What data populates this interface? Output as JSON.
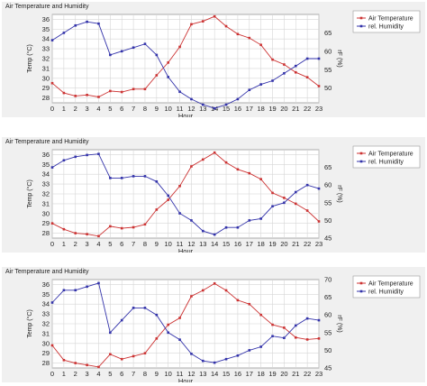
{
  "chart_data": [
    {
      "type": "line",
      "title": "Air Temperature and Humidity",
      "xlabel": "Hour",
      "ylabel": "Temp (°C)",
      "y2label": "rF (%)",
      "x": [
        0,
        1,
        2,
        3,
        4,
        5,
        6,
        7,
        8,
        9,
        10,
        11,
        12,
        13,
        14,
        15,
        16,
        17,
        18,
        19,
        20,
        21,
        22,
        23
      ],
      "ylim": [
        27.5,
        36.5
      ],
      "yticks": [
        28,
        29,
        30,
        31,
        32,
        33,
        34,
        35,
        36
      ],
      "y2lim": [
        46,
        70
      ],
      "y2ticks": [
        50,
        55,
        60,
        65
      ],
      "grid": true,
      "legend": "top-right",
      "series": [
        {
          "name": "Air Temperature",
          "axis": "left",
          "color": "#cc3333",
          "values": [
            29.5,
            28.5,
            28.2,
            28.3,
            28.1,
            28.7,
            28.6,
            28.9,
            28.9,
            30.3,
            31.6,
            33.2,
            35.5,
            35.8,
            36.3,
            35.3,
            34.5,
            34.1,
            33.4,
            31.9,
            31.4,
            30.6,
            30.1,
            29.2
          ]
        },
        {
          "name": "rel. Humidity",
          "axis": "right",
          "color": "#3333aa",
          "values": [
            63,
            65,
            67,
            68,
            67.5,
            59,
            60,
            61,
            62,
            59,
            53,
            49,
            47,
            45.5,
            44.5,
            45.5,
            47,
            49.5,
            51,
            52,
            54,
            56,
            58,
            58
          ]
        }
      ]
    },
    {
      "type": "line",
      "title": "Air Temperature and Humidity",
      "xlabel": "Hour",
      "ylabel": "Temp (°C)",
      "y2label": "rF (%)",
      "x": [
        0,
        1,
        2,
        3,
        4,
        5,
        6,
        7,
        8,
        9,
        10,
        11,
        12,
        13,
        14,
        15,
        16,
        17,
        18,
        19,
        20,
        21,
        22,
        23
      ],
      "ylim": [
        27.5,
        36.5
      ],
      "yticks": [
        28,
        29,
        30,
        31,
        32,
        33,
        34,
        35,
        36
      ],
      "y2lim": [
        45,
        70
      ],
      "y2ticks": [
        45,
        50,
        55,
        60,
        65
      ],
      "grid": true,
      "legend": "top-right",
      "series": [
        {
          "name": "Air Temperature",
          "axis": "left",
          "color": "#cc3333",
          "values": [
            29.0,
            28.4,
            28.0,
            27.9,
            27.7,
            28.7,
            28.5,
            28.6,
            28.9,
            30.4,
            31.4,
            32.8,
            34.8,
            35.5,
            36.2,
            35.2,
            34.5,
            34.1,
            33.5,
            32.1,
            31.6,
            31.0,
            30.3,
            29.2
          ]
        },
        {
          "name": "rel. Humidity",
          "axis": "right",
          "color": "#3333aa",
          "values": [
            65,
            67,
            68,
            68.5,
            68.8,
            62,
            62,
            62.5,
            62.5,
            61,
            57,
            52,
            50,
            47,
            46,
            48,
            48,
            50,
            50.5,
            54,
            55,
            58,
            60,
            59
          ]
        }
      ]
    },
    {
      "type": "line",
      "title": "Air Temperature and Humidity",
      "xlabel": "Hour",
      "ylabel": "Temp (°C)",
      "y2label": "rF (%)",
      "x": [
        0,
        1,
        2,
        3,
        4,
        5,
        6,
        7,
        8,
        9,
        10,
        11,
        12,
        13,
        14,
        15,
        16,
        17,
        18,
        19,
        20,
        21,
        22,
        23
      ],
      "ylim": [
        27.5,
        36.5
      ],
      "yticks": [
        28,
        29,
        30,
        31,
        32,
        33,
        34,
        35,
        36
      ],
      "y2lim": [
        45,
        70
      ],
      "y2ticks": [
        45,
        50,
        55,
        60,
        65,
        70
      ],
      "grid": true,
      "legend": "top-right",
      "series": [
        {
          "name": "Air Temperature",
          "axis": "left",
          "color": "#cc3333",
          "values": [
            29.8,
            28.3,
            28.0,
            27.8,
            27.6,
            28.9,
            28.4,
            28.7,
            29.0,
            30.5,
            31.9,
            32.6,
            34.8,
            35.4,
            36.1,
            35.4,
            34.4,
            34.0,
            32.9,
            31.9,
            31.6,
            30.6,
            30.4,
            30.5
          ]
        },
        {
          "name": "rel. Humidity",
          "axis": "right",
          "color": "#3333aa",
          "values": [
            63.5,
            67,
            67,
            68,
            69,
            55,
            58.5,
            62,
            62,
            60,
            55,
            53,
            49,
            47,
            46.5,
            47.5,
            48.5,
            50,
            51,
            54,
            53.5,
            57,
            59,
            58.5
          ]
        }
      ]
    }
  ]
}
